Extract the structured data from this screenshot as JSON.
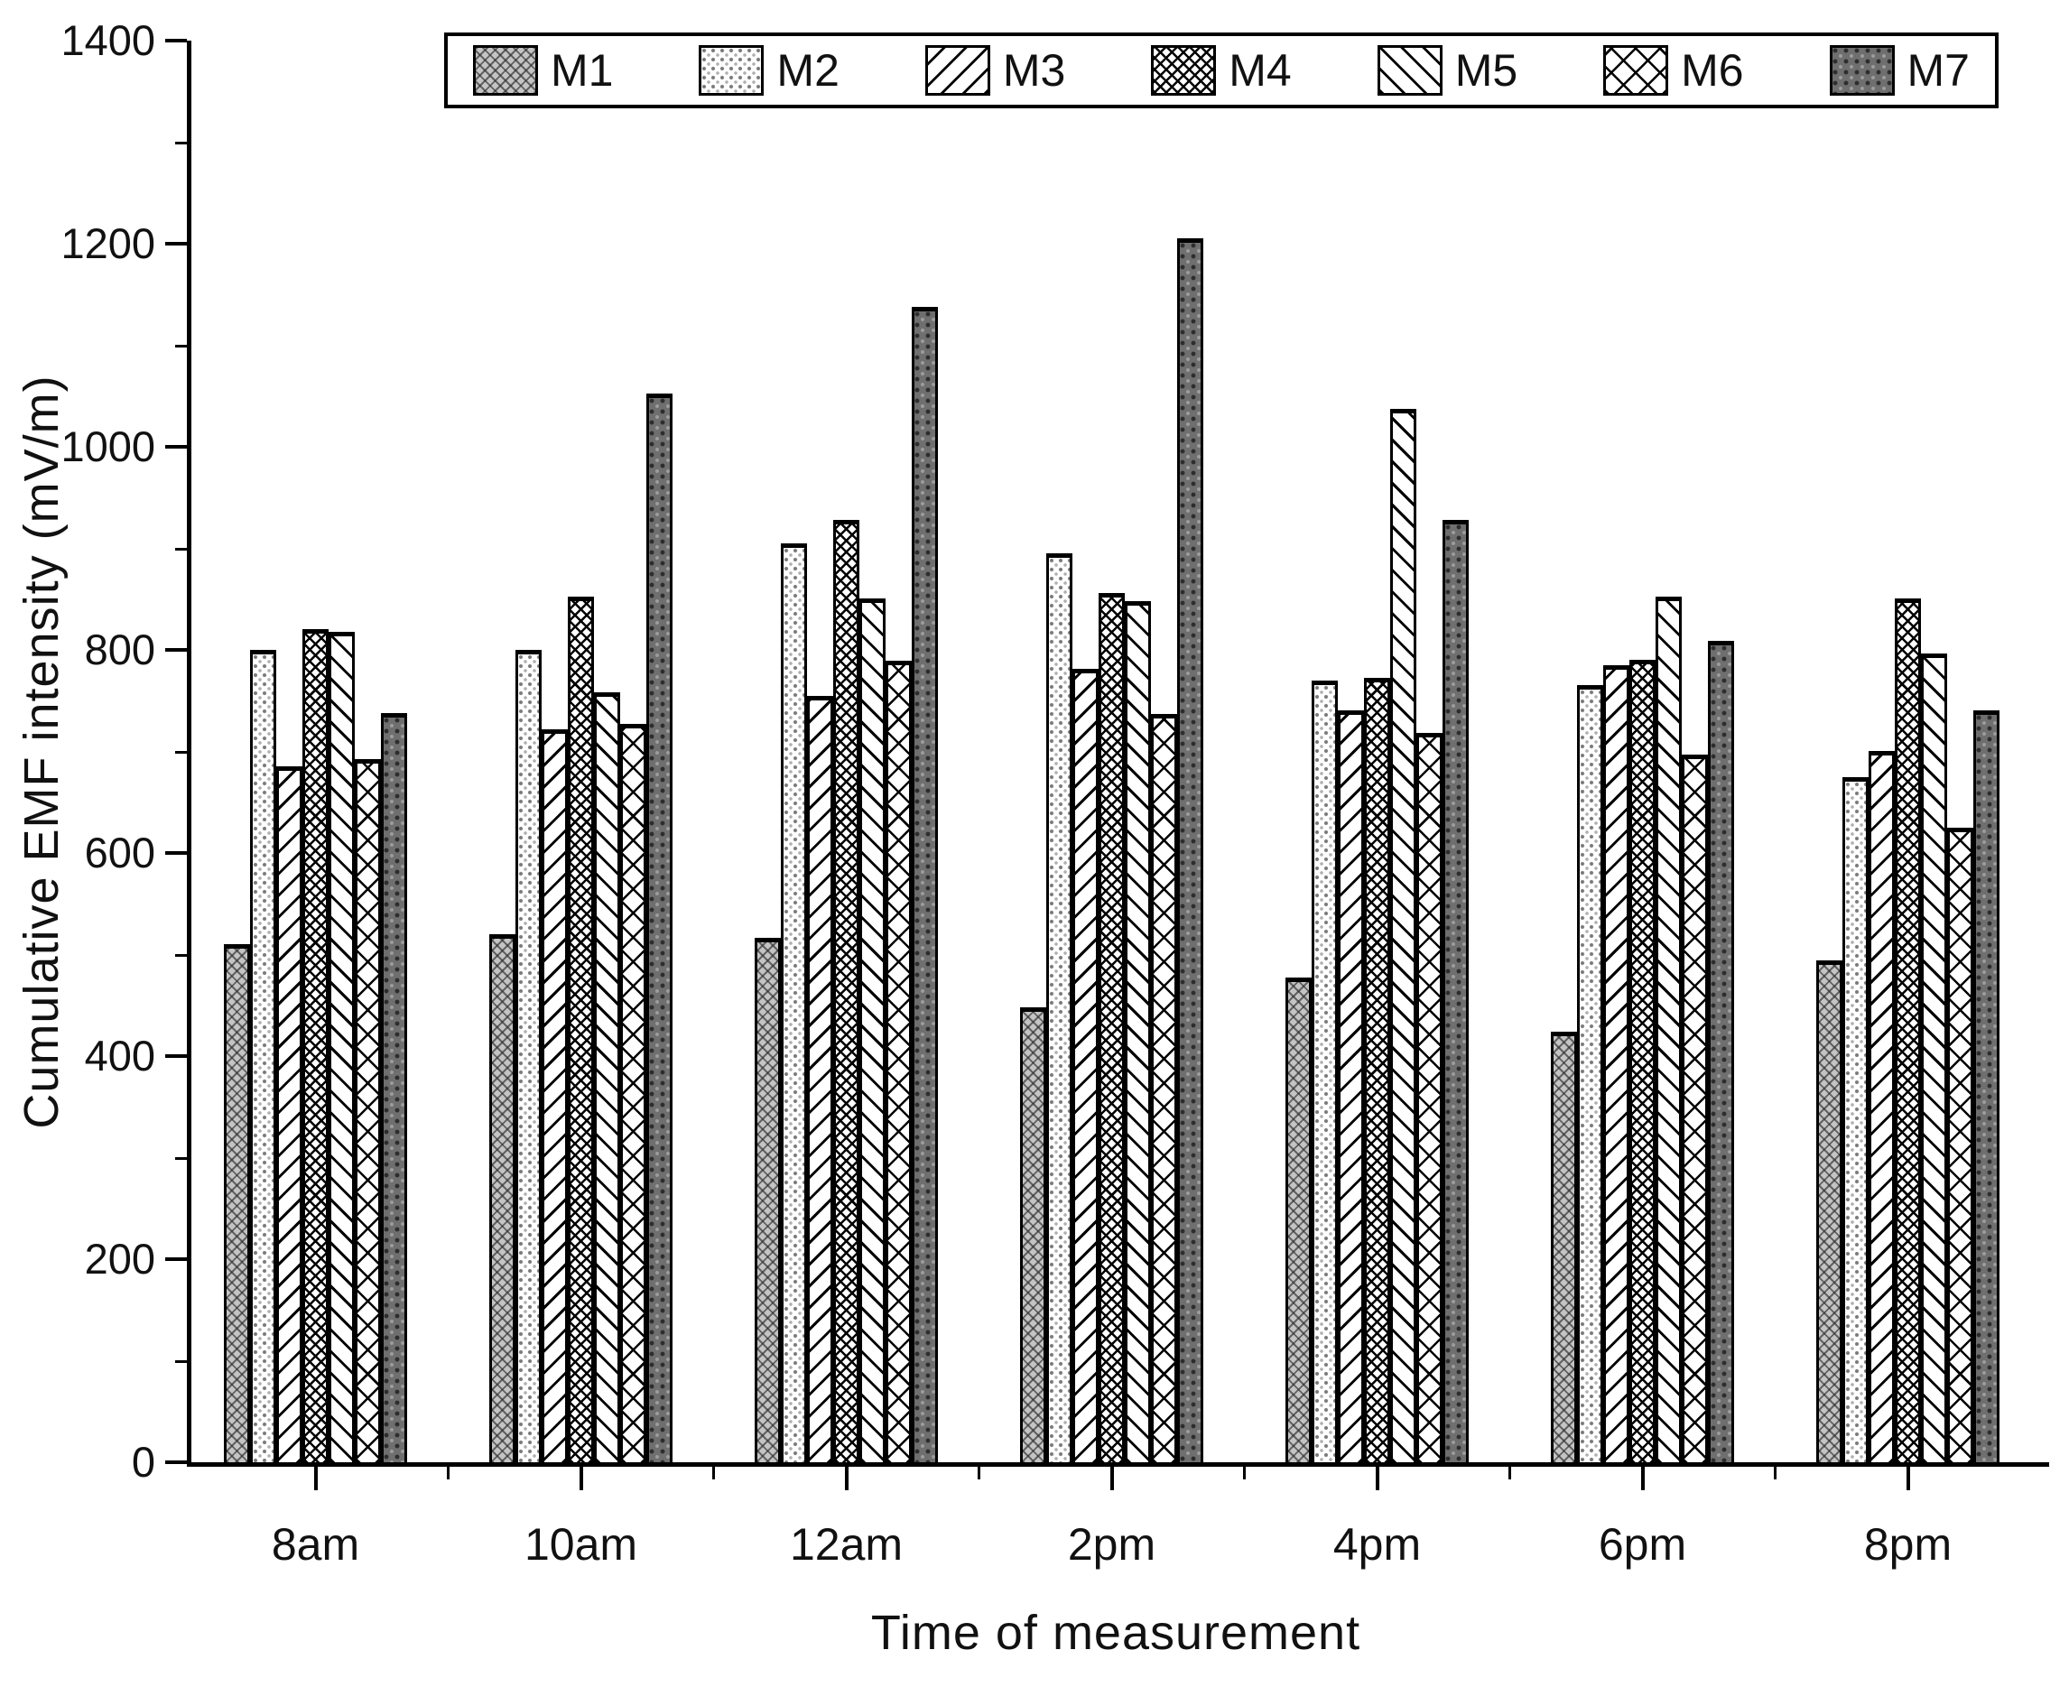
{
  "figure": {
    "background": "#ffffff",
    "axis_color": "#000000",
    "text_color": "#111111"
  },
  "chart_data": {
    "type": "bar",
    "title": "",
    "xlabel": "Time of measurement",
    "ylabel": "Cumulative EMF intensity (mV/m)",
    "categories": [
      "8am",
      "10am",
      "12am",
      "2pm",
      "4pm",
      "6pm",
      "8pm"
    ],
    "series": [
      {
        "name": "M1",
        "pattern": "gray-crosshatch",
        "values": [
          510,
          520,
          516,
          448,
          477,
          424,
          494
        ]
      },
      {
        "name": "M2",
        "pattern": "fine-dots",
        "values": [
          800,
          800,
          905,
          895,
          770,
          765,
          675
        ]
      },
      {
        "name": "M3",
        "pattern": "diagonal-forward",
        "values": [
          685,
          722,
          755,
          781,
          740,
          785,
          700
        ]
      },
      {
        "name": "M4",
        "pattern": "dense-crosshatch",
        "values": [
          820,
          852,
          928,
          856,
          772,
          790,
          851
        ]
      },
      {
        "name": "M5",
        "pattern": "diagonal-back",
        "values": [
          818,
          758,
          851,
          848,
          1037,
          852,
          796
        ]
      },
      {
        "name": "M6",
        "pattern": "open-crosshatch",
        "values": [
          692,
          727,
          789,
          737,
          718,
          697,
          625
        ]
      },
      {
        "name": "M7",
        "pattern": "dark-dots",
        "values": [
          738,
          1052,
          1138,
          1205,
          928,
          809,
          740
        ]
      }
    ],
    "ylim": [
      0,
      1400
    ],
    "ytick_major_interval": 200,
    "ytick_minor_interval": 100,
    "ytick_labels": [
      "0",
      "200",
      "400",
      "600",
      "800",
      "1000",
      "1200",
      "1400"
    ],
    "legend_position": "top",
    "grid": false
  }
}
